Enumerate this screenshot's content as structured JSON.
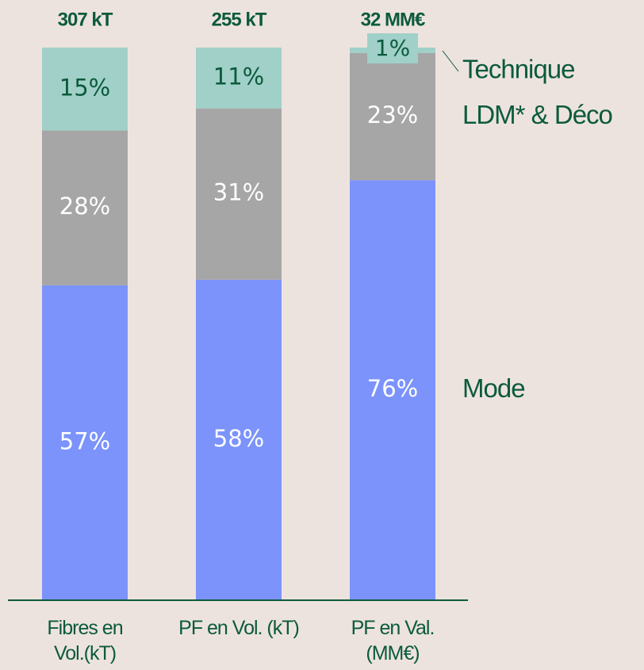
{
  "chart_data": {
    "type": "stacked_bar",
    "categories": [
      "Fibres en\nVol.(kT)",
      "PF en Vol. (kT)",
      "PF en Val.\n(MM€)"
    ],
    "totals": [
      "307 kT",
      "255 kT",
      "32 MM€"
    ],
    "ylim": [
      0,
      100
    ],
    "series": [
      {
        "name": "Mode",
        "color": "#7b93fb",
        "values": [
          57,
          58,
          76
        ],
        "value_labels": [
          "57%",
          "58%",
          "76%"
        ]
      },
      {
        "name": "LDM* & Déco",
        "color": "#a6a6a6",
        "values": [
          28,
          31,
          23
        ],
        "value_labels": [
          "28%",
          "31%",
          "23%"
        ]
      },
      {
        "name": "Technique",
        "color": "#a0d0c8",
        "values": [
          15,
          11,
          1
        ],
        "value_labels": [
          "15%",
          "11%",
          "1%"
        ]
      }
    ]
  }
}
